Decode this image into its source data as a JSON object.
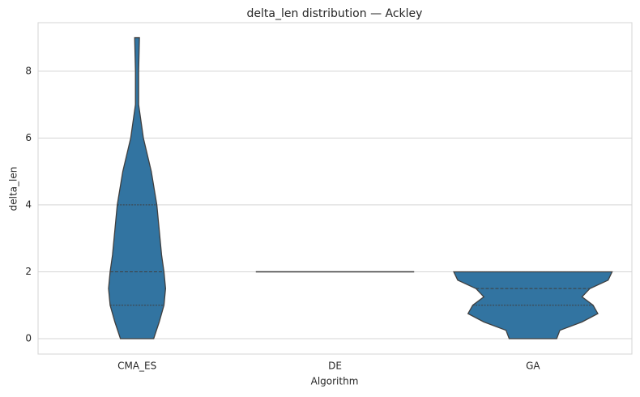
{
  "chart_data": {
    "type": "violin",
    "title": "delta_len distribution — Ackley",
    "xlabel": "Algorithm",
    "ylabel": "delta_len",
    "categories": [
      "CMA_ES",
      "DE",
      "GA"
    ],
    "violins": [
      {
        "y": [
          0,
          0.5,
          1,
          1.5,
          2,
          2.5,
          3,
          4,
          5,
          6,
          7,
          8,
          9
        ],
        "density": [
          0.21,
          0.28,
          0.34,
          0.36,
          0.34,
          0.31,
          0.29,
          0.25,
          0.18,
          0.08,
          0.02,
          0.02,
          0.03
        ],
        "quartiles": [
          1,
          2,
          4
        ]
      },
      {
        "y": [
          2
        ],
        "density": [
          1.0
        ],
        "quartiles": [
          2,
          2,
          2
        ]
      },
      {
        "y": [
          0,
          0.25,
          0.5,
          0.75,
          1,
          1.25,
          1.5,
          1.75,
          2
        ],
        "density": [
          0.3,
          0.34,
          0.62,
          0.82,
          0.76,
          0.62,
          0.72,
          0.95,
          1.0
        ],
        "quartiles": [
          1,
          1.5,
          2
        ]
      }
    ],
    "color": "#3274a1",
    "edge_color": "#3f3f3f",
    "ylim": [
      -0.46,
      9.45
    ],
    "yticks": [
      0,
      2,
      4,
      6,
      8
    ],
    "grid": true
  }
}
